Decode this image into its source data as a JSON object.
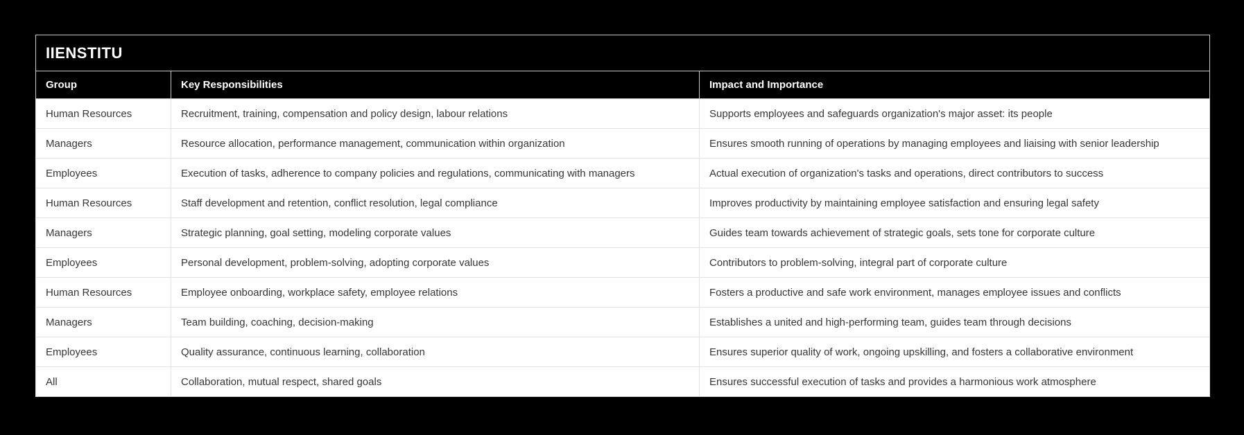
{
  "page": {
    "background": "#000000"
  },
  "colors": {
    "header_bg": "#000000",
    "header_text": "#ffffff",
    "header_border": "#cbcbcb",
    "row_bg": "#ffffff",
    "row_text": "#363636",
    "row_border": "#e2e2e2"
  },
  "table": {
    "title": "IIENSTITU",
    "columns": [
      "Group",
      "Key Responsibilities",
      "Impact and Importance"
    ],
    "rows": [
      [
        "Human Resources",
        "Recruitment, training, compensation and policy design, labour relations",
        "Supports employees and safeguards organization's major asset: its people"
      ],
      [
        "Managers",
        "Resource allocation, performance management, communication within organization",
        "Ensures smooth running of operations by managing employees and liaising with senior leadership"
      ],
      [
        "Employees",
        "Execution of tasks, adherence to company policies and regulations, communicating with managers",
        "Actual execution of organization's tasks and operations, direct contributors to success"
      ],
      [
        "Human Resources",
        "Staff development and retention, conflict resolution, legal compliance",
        "Improves productivity by maintaining employee satisfaction and ensuring legal safety"
      ],
      [
        "Managers",
        "Strategic planning, goal setting, modeling corporate values",
        "Guides team towards achievement of strategic goals, sets tone for corporate culture"
      ],
      [
        "Employees",
        "Personal development, problem-solving, adopting corporate values",
        "Contributors to problem-solving, integral part of corporate culture"
      ],
      [
        "Human Resources",
        "Employee onboarding, workplace safety, employee relations",
        "Fosters a productive and safe work environment, manages employee issues and conflicts"
      ],
      [
        "Managers",
        "Team building, coaching, decision-making",
        "Establishes a united and high-performing team, guides team through decisions"
      ],
      [
        "Employees",
        "Quality assurance, continuous learning, collaboration",
        "Ensures superior quality of work, ongoing upskilling, and fosters a collaborative environment"
      ],
      [
        "All",
        "Collaboration, mutual respect, shared goals",
        "Ensures successful execution of tasks and provides a harmonious work atmosphere"
      ]
    ]
  }
}
